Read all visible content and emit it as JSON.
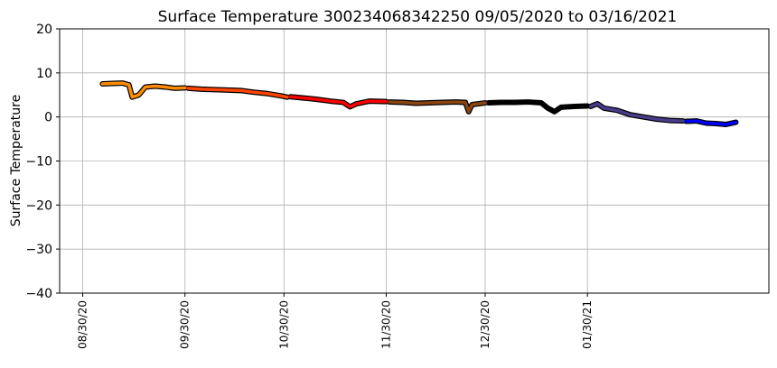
{
  "chart_data": {
    "type": "line",
    "title": "Surface Temperature 300234068342250  09/05/2020 to 03/16/2021",
    "y_label": "Surface Temperature",
    "grid": true,
    "xlim": [
      "2020-08-23",
      "2021-03-26"
    ],
    "xticks": [
      {
        "value": "2020-08-30",
        "label": "08/30/20"
      },
      {
        "value": "2020-09-30",
        "label": "09/30/20"
      },
      {
        "value": "2020-10-30",
        "label": "10/30/20"
      },
      {
        "value": "2020-11-30",
        "label": "11/30/20"
      },
      {
        "value": "2020-12-30",
        "label": "12/30/20"
      },
      {
        "value": "2021-01-30",
        "label": "01/30/21"
      }
    ],
    "ylim": [
      -40,
      20
    ],
    "yticks": [
      {
        "value": -40,
        "label": "−40"
      },
      {
        "value": -30,
        "label": "−30"
      },
      {
        "value": -20,
        "label": "−20"
      },
      {
        "value": -10,
        "label": "−10"
      },
      0,
      10,
      20
    ],
    "series": [
      {
        "color": "#ff8c00",
        "x": [
          "2020-09-05",
          "2020-09-08",
          "2020-09-11",
          "2020-09-13",
          "2020-09-14",
          "2020-09-16",
          "2020-09-18",
          "2020-09-21",
          "2020-09-24",
          "2020-09-27",
          "2020-09-30"
        ],
        "values": [
          7.5,
          7.6,
          7.7,
          7.3,
          4.5,
          5.0,
          6.8,
          7.0,
          6.8,
          6.5,
          6.6
        ]
      },
      {
        "color": "#ff4500",
        "x": [
          "2020-10-01",
          "2020-10-05",
          "2020-10-09",
          "2020-10-13",
          "2020-10-17",
          "2020-10-21",
          "2020-10-25",
          "2020-10-29",
          "2020-10-31"
        ],
        "values": [
          6.5,
          6.3,
          6.2,
          6.1,
          6.0,
          5.6,
          5.3,
          4.8,
          4.5
        ]
      },
      {
        "color": "#ff0000",
        "x": [
          "2020-11-01",
          "2020-11-05",
          "2020-11-09",
          "2020-11-13",
          "2020-11-17",
          "2020-11-19",
          "2020-11-21",
          "2020-11-25",
          "2020-11-30"
        ],
        "values": [
          4.6,
          4.3,
          4.0,
          3.6,
          3.3,
          2.3,
          3.0,
          3.6,
          3.5
        ]
      },
      {
        "color": "#8b4513",
        "x": [
          "2020-12-01",
          "2020-12-05",
          "2020-12-09",
          "2020-12-13",
          "2020-12-17",
          "2020-12-21",
          "2020-12-24",
          "2020-12-25",
          "2020-12-26",
          "2020-12-30"
        ],
        "values": [
          3.4,
          3.3,
          3.1,
          3.2,
          3.3,
          3.4,
          3.3,
          1.2,
          2.8,
          3.2
        ]
      },
      {
        "color": "#000000",
        "x": [
          "2020-12-31",
          "2021-01-04",
          "2021-01-08",
          "2021-01-12",
          "2021-01-16",
          "2021-01-18",
          "2021-01-20",
          "2021-01-22",
          "2021-01-26",
          "2021-01-30"
        ],
        "values": [
          3.2,
          3.3,
          3.3,
          3.4,
          3.2,
          2.0,
          1.2,
          2.2,
          2.4,
          2.5
        ]
      },
      {
        "color": "#483d8b",
        "x": [
          "2021-01-31",
          "2021-02-02",
          "2021-02-04",
          "2021-02-08",
          "2021-02-12",
          "2021-02-16",
          "2021-02-20",
          "2021-02-24",
          "2021-02-28"
        ],
        "values": [
          2.4,
          3.0,
          2.0,
          1.5,
          0.5,
          0.0,
          -0.5,
          -0.8,
          -0.9
        ]
      },
      {
        "color": "#0000ff",
        "x": [
          "2021-03-01",
          "2021-03-04",
          "2021-03-07",
          "2021-03-10",
          "2021-03-13",
          "2021-03-16"
        ],
        "values": [
          -1.0,
          -0.9,
          -1.4,
          -1.5,
          -1.7,
          -1.2
        ]
      }
    ]
  }
}
